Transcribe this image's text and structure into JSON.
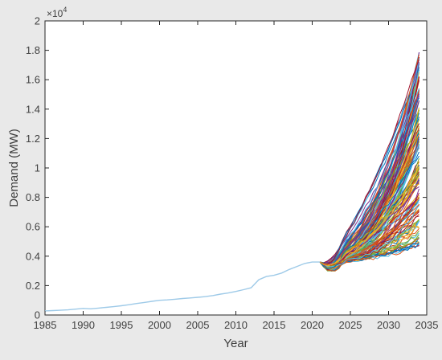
{
  "chart_data": {
    "type": "line",
    "title": "",
    "xlabel": "Year",
    "ylabel": "Demand (MW)",
    "y_multiplier_label": "×10",
    "y_multiplier_power": "4",
    "xlim": [
      1985,
      2035
    ],
    "ylim": [
      0,
      2
    ],
    "grid": false,
    "x_ticks": [
      1985,
      1990,
      1995,
      2000,
      2005,
      2010,
      2015,
      2020,
      2025,
      2030,
      2035
    ],
    "x_tick_labels": [
      "1985",
      "1990",
      "1995",
      "2000",
      "2005",
      "2010",
      "2015",
      "2020",
      "2025",
      "2030",
      "2035"
    ],
    "y_ticks": [
      0,
      0.2,
      0.4,
      0.6,
      0.8,
      1.0,
      1.2,
      1.4,
      1.6,
      1.8,
      2.0
    ],
    "y_tick_labels": [
      "0",
      "0.2",
      "0.4",
      "0.6",
      "0.8",
      "1",
      "1.2",
      "1.4",
      "1.6",
      "1.8",
      "2"
    ],
    "historical": {
      "color": "#9ecae8",
      "x": [
        1985,
        1986,
        1987,
        1988,
        1989,
        1990,
        1991,
        1992,
        1993,
        1994,
        1995,
        1996,
        1997,
        1998,
        1999,
        2000,
        2001,
        2002,
        2003,
        2004,
        2005,
        2006,
        2007,
        2008,
        2009,
        2010,
        2011,
        2012,
        2013,
        2014,
        2015,
        2016,
        2017,
        2018,
        2019,
        2020,
        2021
      ],
      "y": [
        0.028,
        0.03,
        0.032,
        0.035,
        0.04,
        0.045,
        0.042,
        0.047,
        0.052,
        0.057,
        0.063,
        0.07,
        0.078,
        0.085,
        0.093,
        0.1,
        0.103,
        0.107,
        0.112,
        0.116,
        0.12,
        0.125,
        0.132,
        0.142,
        0.15,
        0.16,
        0.172,
        0.185,
        0.24,
        0.262,
        0.27,
        0.285,
        0.31,
        0.33,
        0.35,
        0.36,
        0.36
      ]
    },
    "scenarios": {
      "count": 150,
      "start_year": 2021,
      "end_year": 2034,
      "start_value": 0.36,
      "end_range": [
        0.48,
        1.8
      ],
      "palette": [
        "#0072BD",
        "#D95319",
        "#EDB120",
        "#7E2F8E",
        "#77AC30",
        "#4DBEEE",
        "#A2142F"
      ]
    }
  }
}
